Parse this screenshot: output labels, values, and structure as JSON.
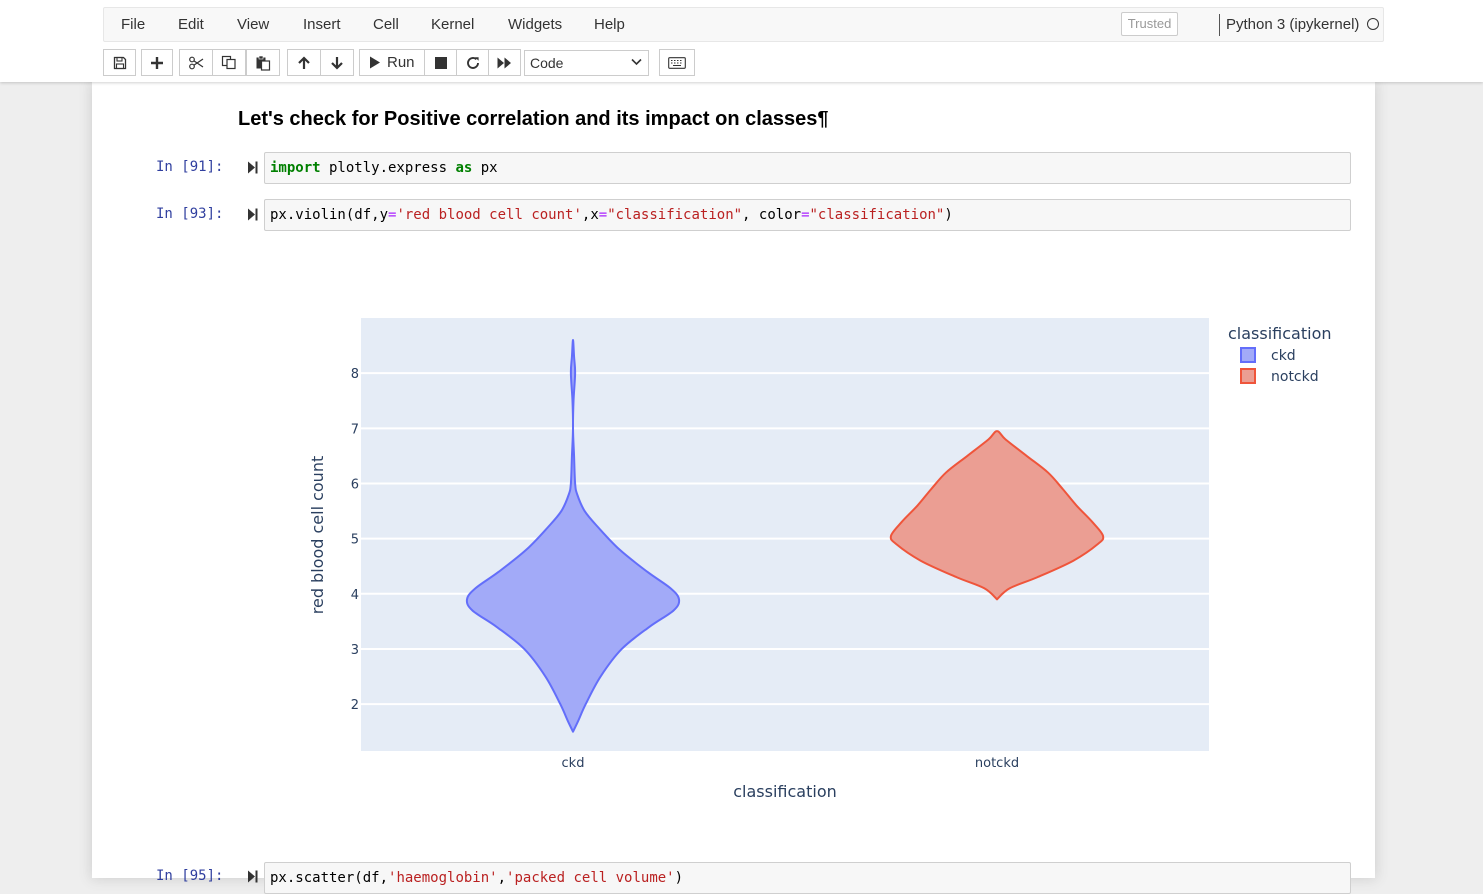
{
  "menubar": {
    "items": [
      "File",
      "Edit",
      "View",
      "Insert",
      "Cell",
      "Kernel",
      "Widgets",
      "Help"
    ],
    "trusted": "Trusted",
    "kernel_name": "Python 3 (ipykernel)"
  },
  "toolbar": {
    "run_label": "Run",
    "cell_type": "Code",
    "icons": [
      "save-icon",
      "plus-icon",
      "cut-icon",
      "copy-icon",
      "paste-icon",
      "arrow-up-icon",
      "arrow-down-icon",
      "play-icon",
      "stop-icon",
      "restart-icon",
      "fast-forward-icon",
      "keyboard-icon"
    ]
  },
  "notebook": {
    "heading": "Let's check for Positive correlation and its impact on classes¶",
    "cells": [
      {
        "prompt": "In [91]:",
        "code_tokens": [
          {
            "t": "import",
            "c": "kw"
          },
          {
            "t": " plotly.express ",
            "c": ""
          },
          {
            "t": "as",
            "c": "kw"
          },
          {
            "t": " px",
            "c": ""
          }
        ]
      },
      {
        "prompt": "In [93]:",
        "code_tokens": [
          {
            "t": "px.violin(df,y",
            "c": ""
          },
          {
            "t": "=",
            "c": "op"
          },
          {
            "t": "'red blood cell count'",
            "c": "str"
          },
          {
            "t": ",x",
            "c": ""
          },
          {
            "t": "=",
            "c": "op"
          },
          {
            "t": "\"classification\"",
            "c": "str"
          },
          {
            "t": ", color",
            "c": ""
          },
          {
            "t": "=",
            "c": "op"
          },
          {
            "t": "\"classification\"",
            "c": "str"
          },
          {
            "t": ")",
            "c": ""
          }
        ]
      },
      {
        "prompt": "In [95]:",
        "code_tokens": [
          {
            "t": "px.scatter(df,",
            "c": ""
          },
          {
            "t": "'haemoglobin'",
            "c": "str"
          },
          {
            "t": ",",
            "c": ""
          },
          {
            "t": "'packed cell volume'",
            "c": "str"
          },
          {
            "t": ")",
            "c": ""
          }
        ]
      }
    ]
  },
  "chart_data": {
    "type": "violin",
    "categories": [
      "ckd",
      "notckd"
    ],
    "xlabel": "classification",
    "ylabel": "red blood cell count",
    "ylim": [
      1.15,
      9.0
    ],
    "yticks": [
      2,
      3,
      4,
      5,
      6,
      7,
      8
    ],
    "grid": true,
    "legend": {
      "title": "classification",
      "placement": "top-right"
    },
    "series": [
      {
        "name": "ckd",
        "fill": "#a2aaf8",
        "line": "#636efa",
        "density": [
          [
            1.5,
            0.0
          ],
          [
            1.7,
            0.05
          ],
          [
            2.0,
            0.12
          ],
          [
            2.5,
            0.26
          ],
          [
            3.0,
            0.46
          ],
          [
            3.4,
            0.72
          ],
          [
            3.7,
            0.95
          ],
          [
            3.9,
            1.0
          ],
          [
            4.1,
            0.92
          ],
          [
            4.4,
            0.7
          ],
          [
            4.8,
            0.44
          ],
          [
            5.2,
            0.24
          ],
          [
            5.5,
            0.11
          ],
          [
            5.8,
            0.04
          ],
          [
            6.0,
            0.02
          ],
          [
            6.5,
            0.01
          ],
          [
            7.0,
            0.0
          ],
          [
            7.5,
            0.005
          ],
          [
            8.0,
            0.02
          ],
          [
            8.3,
            0.01
          ],
          [
            8.6,
            0.0
          ]
        ]
      },
      {
        "name": "notckd",
        "fill": "#eb9e93",
        "line": "#ef553b",
        "density": [
          [
            3.9,
            0.0
          ],
          [
            4.1,
            0.12
          ],
          [
            4.3,
            0.38
          ],
          [
            4.6,
            0.72
          ],
          [
            4.9,
            0.95
          ],
          [
            5.05,
            1.0
          ],
          [
            5.3,
            0.9
          ],
          [
            5.6,
            0.75
          ],
          [
            5.9,
            0.62
          ],
          [
            6.2,
            0.48
          ],
          [
            6.5,
            0.28
          ],
          [
            6.8,
            0.08
          ],
          [
            6.95,
            0.0
          ]
        ]
      }
    ]
  }
}
